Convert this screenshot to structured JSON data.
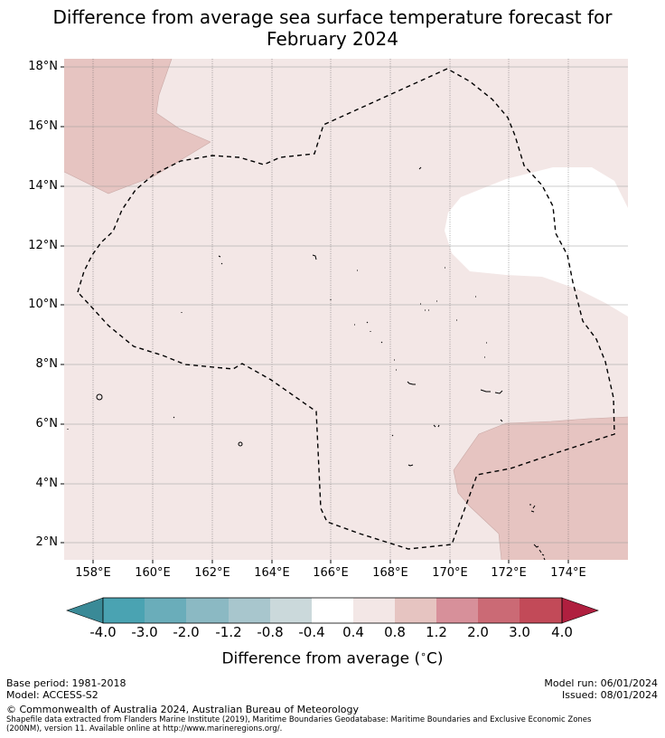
{
  "title_line1": "Difference from average sea surface temperature forecast for",
  "title_line2": "February 2024",
  "lat_labels": [
    "18°N",
    "16°N",
    "14°N",
    "12°N",
    "10°N",
    "8°N",
    "6°N",
    "4°N",
    "2°N"
  ],
  "lon_labels": [
    "158°E",
    "160°E",
    "162°E",
    "164°E",
    "166°E",
    "168°E",
    "170°E",
    "172°E",
    "174°E"
  ],
  "colorbar": {
    "labels": [
      "-4.0",
      "-3.0",
      "-2.0",
      "-1.2",
      "-0.8",
      "-0.4",
      "0.4",
      "0.8",
      "1.2",
      "2.0",
      "3.0",
      "4.0"
    ],
    "colors": [
      "#3a8a97",
      "#4aa3b2",
      "#6aadba",
      "#8bb9c3",
      "#a8c6cd",
      "#cbd9db",
      "#ffffff",
      "#f3e7e6",
      "#e6c4c1",
      "#d7909a",
      "#cb6a75",
      "#c24a58",
      "#b01f3f"
    ],
    "title": "Difference from average ($^\\circ$C)",
    "title_display": "Difference from average (",
    "unit_display": "C)"
  },
  "map": {
    "background_color": "#f3e7e6",
    "warm_color": "#e6c4c1",
    "neutral_color": "#ffffff"
  },
  "footer": {
    "base_period": "Base period: 1981-2018",
    "model": "Model: ACCESS-S2",
    "model_run": "Model run: 06/01/2024",
    "issued": "Issued: 08/01/2024",
    "copyright": "© Commonwealth of Australia 2024, Australian Bureau of Meteorology",
    "shapefile_line1": "Shapefile data extracted from Flanders Marine Institute (2019), Maritime Boundaries Geodatabase: Maritime Boundaries and Exclusive Economic Zones",
    "shapefile_line2": "(200NM), version 11. Available online at http://www.marineregions.org/."
  }
}
